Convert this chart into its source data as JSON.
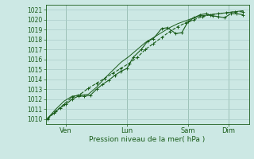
{
  "xlabel": "Pression niveau de la mer( hPa )",
  "ylim": [
    1009.5,
    1021.5
  ],
  "yticks": [
    1010,
    1011,
    1012,
    1013,
    1014,
    1015,
    1016,
    1017,
    1018,
    1019,
    1020,
    1021
  ],
  "background_color": "#cce8e4",
  "grid_color": "#aaccca",
  "line_color": "#1a5c1a",
  "xtick_labels": [
    "Ven",
    "Lun",
    "Sam",
    "Dim"
  ],
  "xtick_positions": [
    1,
    4,
    7,
    9
  ],
  "xmin": 0.0,
  "xmax": 10.0,
  "series1_x": [
    0.1,
    0.4,
    0.7,
    1.0,
    1.3,
    1.6,
    1.9,
    2.2,
    2.5,
    2.8,
    3.1,
    3.4,
    3.7,
    4.0,
    4.3,
    4.7,
    5.0,
    5.3,
    5.7,
    6.0,
    6.4,
    6.7,
    7.0,
    7.3,
    7.6,
    7.9,
    8.2,
    8.5,
    8.8,
    9.1,
    9.4,
    9.7
  ],
  "series1_y": [
    1010.1,
    1010.6,
    1011.1,
    1011.5,
    1012.0,
    1012.3,
    1012.3,
    1012.4,
    1013.0,
    1013.5,
    1013.9,
    1014.4,
    1014.8,
    1015.1,
    1016.2,
    1017.0,
    1017.8,
    1018.1,
    1019.1,
    1019.2,
    1018.6,
    1018.7,
    1019.8,
    1020.2,
    1020.5,
    1020.6,
    1020.4,
    1020.3,
    1020.2,
    1020.6,
    1020.6,
    1020.5
  ],
  "series2_x": [
    0.1,
    0.5,
    0.9,
    1.3,
    1.7,
    2.1,
    2.5,
    2.9,
    3.3,
    3.7,
    4.1,
    4.5,
    4.9,
    5.3,
    5.7,
    6.1,
    6.5,
    6.9,
    7.3,
    7.7,
    8.1,
    8.5,
    8.9,
    9.3,
    9.7
  ],
  "series2_y": [
    1010.0,
    1010.8,
    1011.5,
    1012.2,
    1012.5,
    1013.1,
    1013.6,
    1014.1,
    1014.6,
    1015.1,
    1015.6,
    1016.2,
    1017.0,
    1017.6,
    1018.2,
    1018.8,
    1019.3,
    1019.7,
    1020.0,
    1020.3,
    1020.5,
    1020.6,
    1020.7,
    1020.8,
    1020.8
  ],
  "series3_x": [
    0.1,
    0.5,
    0.9,
    1.3,
    1.7,
    2.1,
    2.5,
    2.9,
    3.3,
    3.7,
    4.1,
    4.5,
    4.9,
    5.3,
    5.7,
    6.1,
    6.5,
    6.9,
    7.3,
    7.7,
    8.1,
    8.5,
    8.9,
    9.3,
    9.7
  ],
  "series3_y": [
    1010.1,
    1011.0,
    1011.8,
    1012.3,
    1012.4,
    1012.5,
    1013.2,
    1014.1,
    1014.9,
    1015.7,
    1016.3,
    1017.0,
    1017.7,
    1018.2,
    1018.7,
    1019.2,
    1019.6,
    1019.9,
    1020.2,
    1020.4,
    1020.5,
    1020.6,
    1020.7,
    1020.8,
    1020.9
  ]
}
